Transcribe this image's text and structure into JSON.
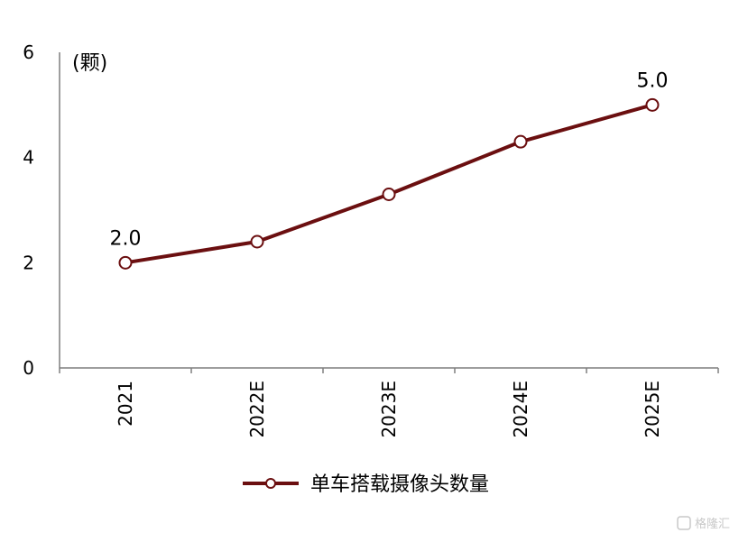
{
  "chart_data": {
    "type": "line",
    "categories": [
      "2021",
      "2022E",
      "2023E",
      "2024E",
      "2025E"
    ],
    "series": [
      {
        "name": "单车搭载摄像头数量",
        "values": [
          2.0,
          2.4,
          3.3,
          4.3,
          5.0
        ],
        "color": "#6b0f10"
      }
    ],
    "ylim": [
      0,
      6
    ],
    "yticks": [
      "0",
      "2",
      "4",
      "6"
    ],
    "yunit": "(颗)",
    "data_labels": [
      {
        "index": 0,
        "text": "2.0"
      },
      {
        "index": 4,
        "text": "5.0"
      }
    ],
    "grid": false,
    "legend_position": "bottom-center"
  },
  "watermark": "格隆汇"
}
